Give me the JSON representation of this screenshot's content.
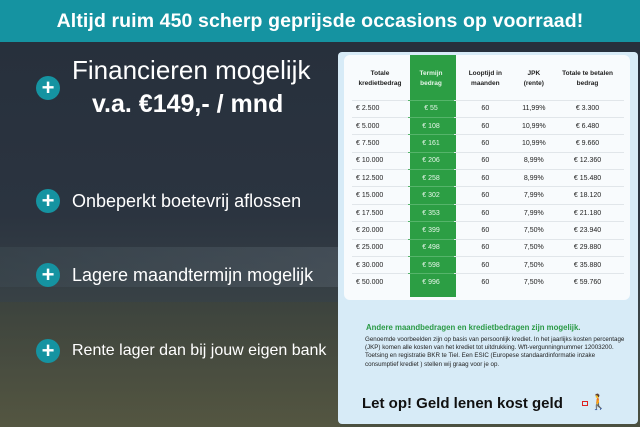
{
  "header": {
    "title": "Altijd ruim 450 scherp geprijsde occasions op voorraad!"
  },
  "colors": {
    "accent": "#1593a1",
    "green": "#2c9e44",
    "background": "#262e3a"
  },
  "features": [
    {
      "icon": "plus-circle-icon",
      "line1": "Financieren mogelijk",
      "line2": "v.a. €149,- / mnd"
    },
    {
      "icon": "plus-circle-icon",
      "label": "Onbeperkt boetevrij aflossen"
    },
    {
      "icon": "plus-circle-icon",
      "label": "Lagere maandtermijn mogelijk"
    },
    {
      "icon": "plus-circle-icon",
      "label": "Rente lager dan bij jouw eigen bank"
    }
  ],
  "table": {
    "headers": [
      "Totale kredietbedrag",
      "Termijn bedrag",
      "Looptijd in maanden",
      "JPK (rente)",
      "Totale te betalen bedrag"
    ],
    "rows": [
      [
        "€ 2.500",
        "€ 55",
        "60",
        "11,99%",
        "€ 3.300"
      ],
      [
        "€ 5.000",
        "€ 108",
        "60",
        "10,99%",
        "€ 6.480"
      ],
      [
        "€ 7.500",
        "€ 161",
        "60",
        "10,99%",
        "€ 9.660"
      ],
      [
        "€ 10.000",
        "€ 206",
        "60",
        "8,99%",
        "€ 12.360"
      ],
      [
        "€ 12.500",
        "€ 258",
        "60",
        "8,99%",
        "€ 15.480"
      ],
      [
        "€ 15.000",
        "€ 302",
        "60",
        "7,99%",
        "€ 18.120"
      ],
      [
        "€ 17.500",
        "€ 353",
        "60",
        "7,99%",
        "€ 21.180"
      ],
      [
        "€ 20.000",
        "€ 399",
        "60",
        "7,50%",
        "€ 23.940"
      ],
      [
        "€ 25.000",
        "€ 498",
        "60",
        "7,50%",
        "€ 29.880"
      ],
      [
        "€ 30.000",
        "€ 598",
        "60",
        "7,50%",
        "€ 35.880"
      ],
      [
        "€ 50.000",
        "€ 996",
        "60",
        "7,50%",
        "€ 59.760"
      ]
    ]
  },
  "note": {
    "title": "Andere maandbedragen en kredietbedragen zijn mogelijk.",
    "body": "Genoemde voorbeelden zijn op basis van persoonlijk krediet. In het jaarlijks kosten percentage (JKP) komen alle kosten van het krediet tot uitdrukking. Wft-vergunningnummer 12003200. Toetsing en registratie BKR te Tiel. Een ESIC (Europese standaardinformatie inzake consumptief krediet ) stellen wij graag voor je op.",
    "warning": "Let op! Geld lenen kost geld",
    "warning_icon": "walking-person-icon"
  }
}
